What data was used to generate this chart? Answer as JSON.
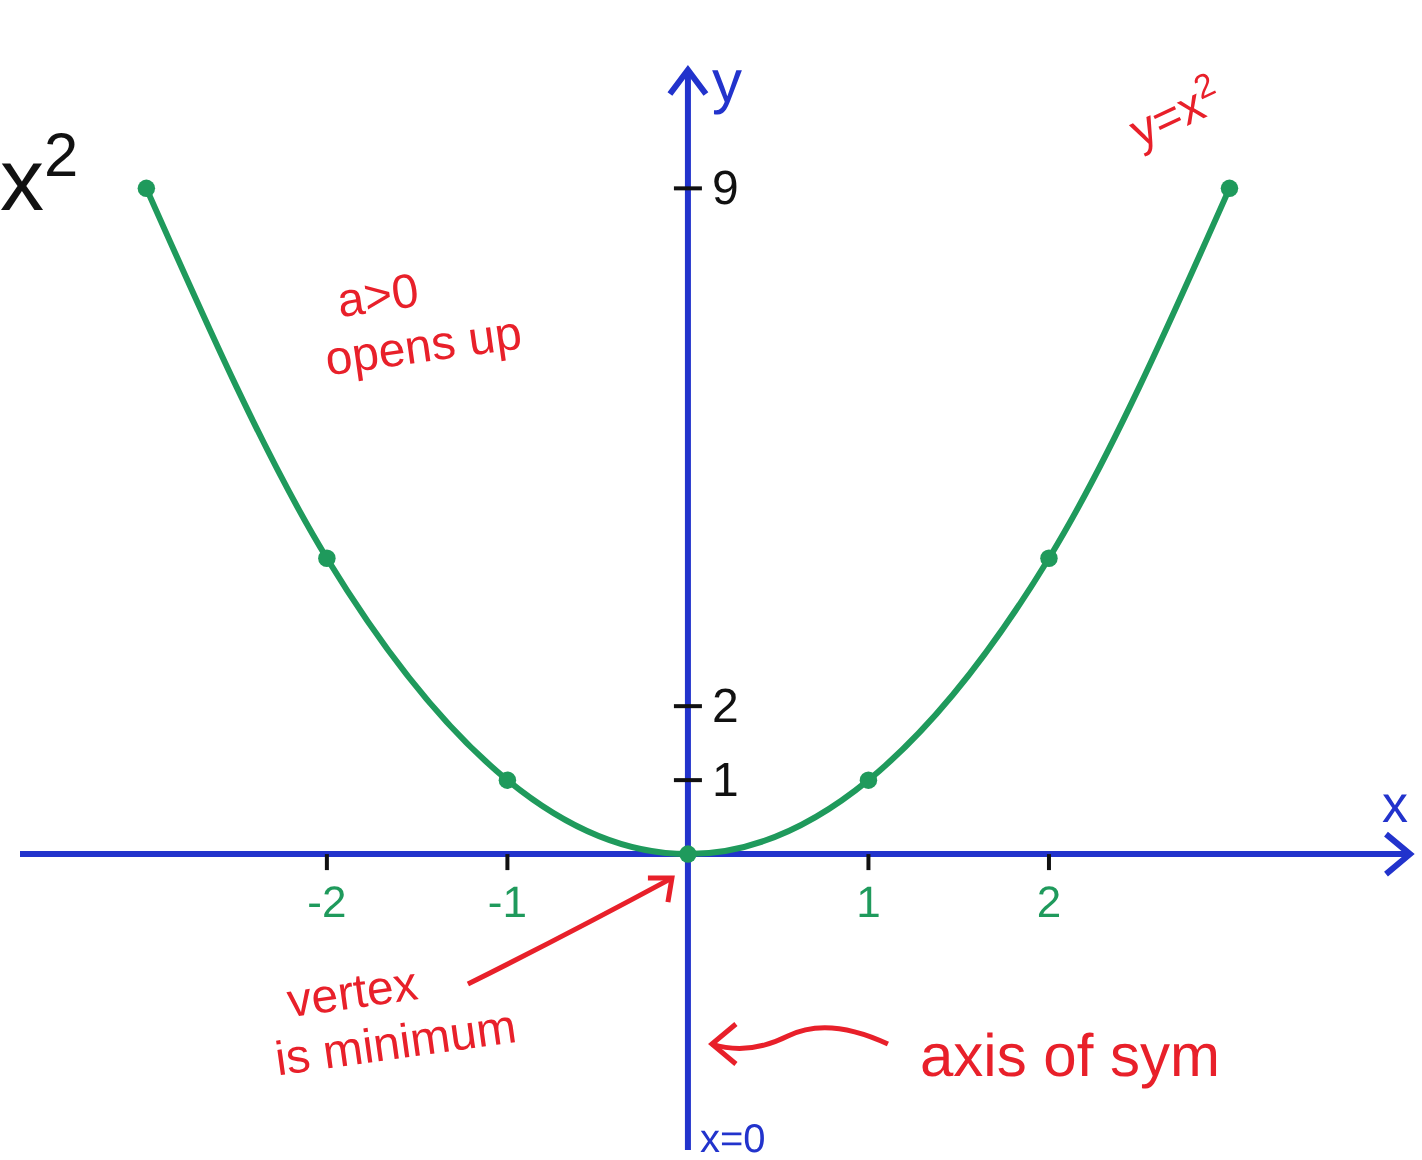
{
  "chart_data": {
    "type": "line",
    "xlabel": "x",
    "ylabel": "y",
    "x": [
      -3,
      -2,
      -1,
      0,
      1,
      2,
      3
    ],
    "series": [
      {
        "name": "y=x$^{2}$",
        "color": "#1f9a5c",
        "values": [
          9,
          4,
          1,
          0,
          1,
          4,
          9
        ]
      }
    ],
    "xlim": [
      -3.7,
      4
    ],
    "ylim": [
      -4,
      10.6
    ],
    "xticks": [
      -2,
      -1,
      1,
      2
    ],
    "yticks": [
      1,
      2,
      9
    ],
    "marker": "circle",
    "grid": false,
    "annotations": [
      "x$^{2}$",
      "a>0 opens up",
      "vertex is minimum",
      "axis of sym",
      "x=0"
    ]
  }
}
